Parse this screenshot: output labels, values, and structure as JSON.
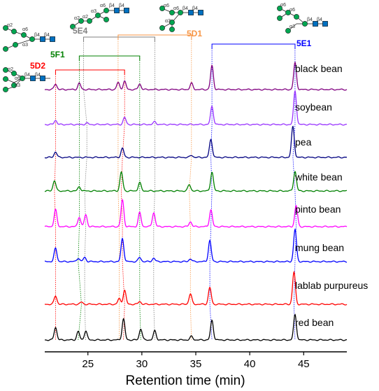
{
  "chart_data": {
    "type": "line",
    "xlabel": "Retention time (min)",
    "xlim": [
      21,
      49
    ],
    "xticks": [
      25,
      30,
      35,
      40,
      45
    ],
    "grid": false,
    "legend": "none",
    "series": [
      {
        "name": "black bean",
        "color": "#800080",
        "peaks": [
          [
            22.0,
            8
          ],
          [
            24.2,
            9
          ],
          [
            27.8,
            10
          ],
          [
            28.4,
            12
          ],
          [
            29.8,
            8
          ],
          [
            34.6,
            9
          ],
          [
            36.5,
            34
          ],
          [
            44.2,
            38
          ]
        ]
      },
      {
        "name": "soybean",
        "color": "#9933ff",
        "peaks": [
          [
            22.0,
            6
          ],
          [
            24.9,
            2
          ],
          [
            28.4,
            10
          ],
          [
            31.2,
            4
          ],
          [
            36.5,
            26
          ],
          [
            44.2,
            48
          ]
        ]
      },
      {
        "name": "pea",
        "color": "#000080",
        "peaks": [
          [
            22.0,
            8
          ],
          [
            28.2,
            13
          ],
          [
            34.6,
            3
          ],
          [
            36.4,
            26
          ],
          [
            44.0,
            44
          ]
        ]
      },
      {
        "name": "white bean",
        "color": "#008000",
        "peaks": [
          [
            21.9,
            15
          ],
          [
            24.2,
            6
          ],
          [
            28.1,
            27
          ],
          [
            29.8,
            12
          ],
          [
            34.4,
            9
          ],
          [
            36.5,
            27
          ],
          [
            44.2,
            28
          ]
        ]
      },
      {
        "name": "pinto bean",
        "color": "#ff00ff",
        "peaks": [
          [
            22.0,
            24
          ],
          [
            24.2,
            14
          ],
          [
            24.8,
            17
          ],
          [
            28.2,
            38
          ],
          [
            29.8,
            20
          ],
          [
            31.1,
            20
          ],
          [
            34.5,
            7
          ],
          [
            36.4,
            24
          ],
          [
            44.3,
            30
          ]
        ]
      },
      {
        "name": "mung bean",
        "color": "#0000ff",
        "peaks": [
          [
            22.0,
            19
          ],
          [
            24.1,
            5
          ],
          [
            24.7,
            6
          ],
          [
            28.2,
            33
          ],
          [
            29.8,
            6
          ],
          [
            31.1,
            5
          ],
          [
            34.5,
            4
          ],
          [
            36.3,
            30
          ],
          [
            44.2,
            46
          ]
        ]
      },
      {
        "name": "lablab purpureus",
        "color": "#ff0000",
        "peaks": [
          [
            22.0,
            12
          ],
          [
            24.4,
            3
          ],
          [
            27.9,
            8
          ],
          [
            28.4,
            20
          ],
          [
            29.8,
            4
          ],
          [
            34.5,
            15
          ],
          [
            36.3,
            24
          ],
          [
            44.1,
            46
          ]
        ]
      },
      {
        "name": "red bean",
        "color": "#000000",
        "peaks": [
          [
            22.0,
            18
          ],
          [
            24.1,
            12
          ],
          [
            24.8,
            13
          ],
          [
            28.3,
            30
          ],
          [
            29.9,
            16
          ],
          [
            31.2,
            13
          ],
          [
            34.6,
            5
          ],
          [
            36.5,
            28
          ],
          [
            44.2,
            36
          ]
        ]
      }
    ]
  },
  "glycans": [
    {
      "id": "5D2",
      "color": "#ff0000",
      "retention_time": 22.0
    },
    {
      "id": "5F1",
      "color": "#008000",
      "retention_time": 24.2
    },
    {
      "id": "5E4",
      "color": "#808080",
      "retention_time": 24.7
    },
    {
      "id": "5D1",
      "color": "#f79646",
      "retention_time": 34.5
    },
    {
      "id": "5E1",
      "color": "#0000ff",
      "retention_time": 36.5
    }
  ],
  "linkage_labels": {
    "a2": "α2",
    "a3": "α3",
    "a6": "α6",
    "b4": "β4"
  },
  "styles": {
    "glycan_circle": "#00a651",
    "glycan_square": "#0070c0",
    "axis": "#000000"
  }
}
